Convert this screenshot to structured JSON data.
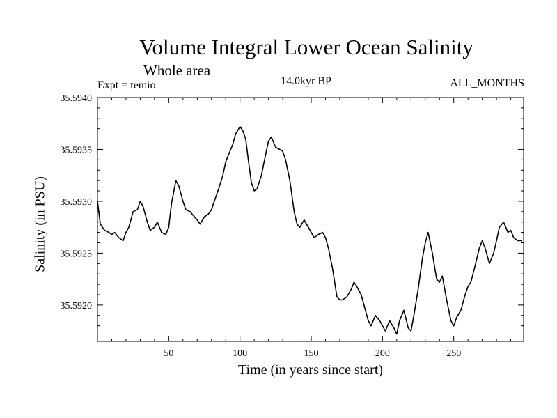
{
  "chart_data": {
    "type": "line",
    "title": "Volume Integral Lower Ocean Salinity",
    "subtitle": "Whole area",
    "experiment_label": "Expt = temio",
    "epoch_label": "14.0kyr BP",
    "months_label": "ALL_MONTHS",
    "xlabel": "Time (in years since start)",
    "ylabel": "Salinity (in PSU)",
    "xlim": [
      0,
      299
    ],
    "ylim": [
      35.59165,
      35.594
    ],
    "x_ticks": [
      50,
      100,
      150,
      200,
      250
    ],
    "x_tick_labels": [
      "50",
      "100",
      "150",
      "200",
      "250"
    ],
    "y_ticks": [
      35.592,
      35.5925,
      35.593,
      35.5935,
      35.594
    ],
    "y_tick_labels": [
      "35.5920",
      "35.5925",
      "35.5930",
      "35.5935",
      "35.5940"
    ],
    "grid": false,
    "series": [
      {
        "name": "Salinity",
        "x": [
          0,
          2,
          5,
          8,
          10,
          12,
          15,
          18,
          20,
          22,
          25,
          28,
          30,
          32,
          35,
          37,
          40,
          42,
          45,
          48,
          50,
          52,
          55,
          57,
          60,
          62,
          65,
          68,
          70,
          72,
          75,
          78,
          80,
          82,
          85,
          88,
          90,
          92,
          95,
          97,
          100,
          102,
          104,
          106,
          108,
          110,
          112,
          115,
          118,
          120,
          122,
          125,
          128,
          130,
          132,
          135,
          138,
          140,
          142,
          145,
          148,
          150,
          152,
          155,
          158,
          160,
          162,
          165,
          168,
          170,
          172,
          175,
          178,
          180,
          182,
          185,
          188,
          190,
          192,
          195,
          198,
          200,
          202,
          205,
          208,
          210,
          212,
          215,
          218,
          220,
          222,
          225,
          228,
          230,
          232,
          235,
          238,
          240,
          242,
          245,
          248,
          250,
          252,
          255,
          258,
          260,
          262,
          265,
          268,
          270,
          272,
          275,
          278,
          280,
          282,
          285,
          288,
          290,
          292,
          295,
          298
        ],
        "values": [
          35.593,
          35.59278,
          35.59272,
          35.5927,
          35.59268,
          35.5927,
          35.59265,
          35.59262,
          35.5927,
          35.59275,
          35.5929,
          35.59292,
          35.593,
          35.59295,
          35.5928,
          35.59272,
          35.59275,
          35.5928,
          35.5927,
          35.59268,
          35.59275,
          35.59298,
          35.5932,
          35.59315,
          35.593,
          35.59292,
          35.5929,
          35.59285,
          35.59282,
          35.59278,
          35.59285,
          35.59288,
          35.59292,
          35.593,
          35.59312,
          35.59325,
          35.59338,
          35.59345,
          35.59355,
          35.59365,
          35.59372,
          35.59368,
          35.5936,
          35.59338,
          35.59318,
          35.5931,
          35.59312,
          35.59325,
          35.59345,
          35.59358,
          35.59362,
          35.59352,
          35.5935,
          35.59348,
          35.5934,
          35.5932,
          35.5929,
          35.59278,
          35.59275,
          35.59282,
          35.59275,
          35.5927,
          35.59265,
          35.59268,
          35.5927,
          35.59265,
          35.59255,
          35.59235,
          35.59208,
          35.59205,
          35.59205,
          35.59208,
          35.59215,
          35.59222,
          35.59218,
          35.5921,
          35.59195,
          35.59185,
          35.5918,
          35.5919,
          35.59185,
          35.5918,
          35.59175,
          35.59185,
          35.59178,
          35.59172,
          35.59185,
          35.59195,
          35.59178,
          35.59175,
          35.5919,
          35.59215,
          35.59245,
          35.5926,
          35.5927,
          35.5925,
          35.59225,
          35.59222,
          35.59228,
          35.59205,
          35.59185,
          35.5918,
          35.59188,
          35.59195,
          35.5921,
          35.59218,
          35.59222,
          35.59238,
          35.59255,
          35.59262,
          35.59255,
          35.5924,
          35.5925,
          35.59262,
          35.59275,
          35.5928,
          35.5927,
          35.59272,
          35.59265,
          35.59262,
          35.59262
        ]
      }
    ]
  }
}
